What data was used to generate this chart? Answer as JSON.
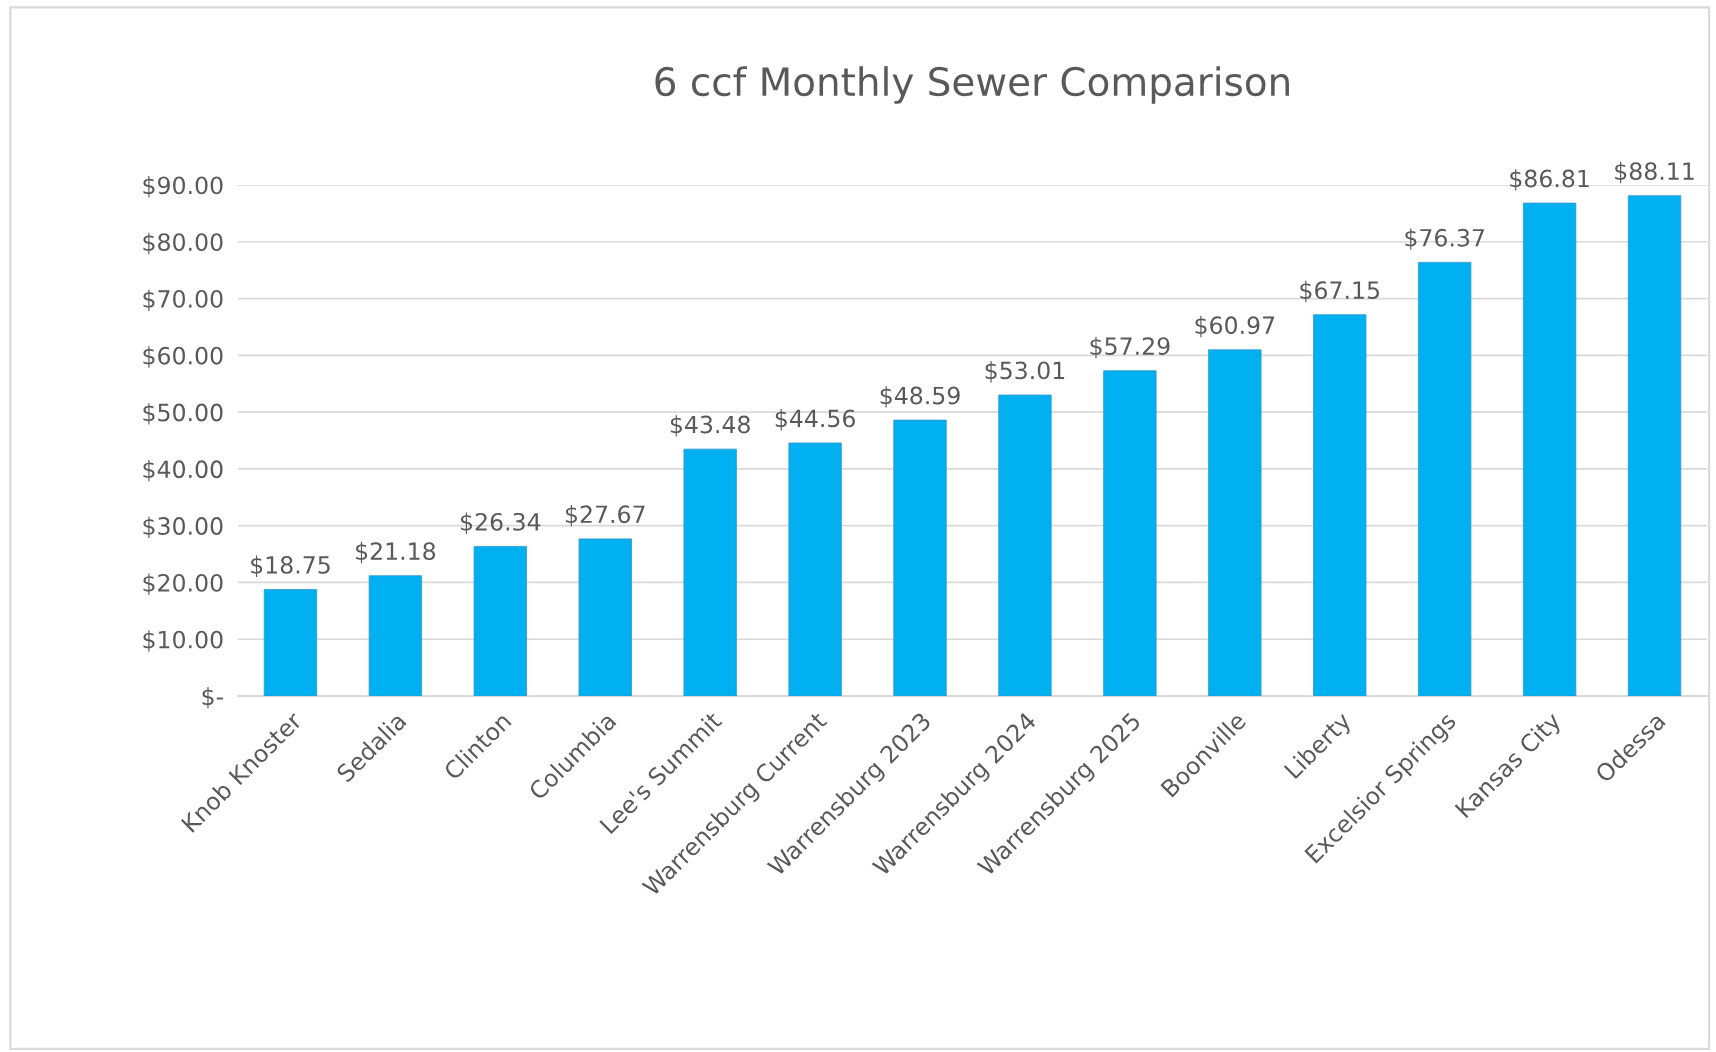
{
  "chart_data": {
    "type": "bar",
    "title": "6 ccf Monthly Sewer Comparison",
    "categories": [
      "Knob Knoster",
      "Sedalia",
      "Clinton",
      "Columbia",
      "Lee's Summit",
      "Warrensburg Current",
      "Warrensburg 2023",
      "Warrensburg 2024",
      "Warrensburg 2025",
      "Boonville",
      "Liberty",
      "Excelsior Springs",
      "Kansas City",
      "Odessa"
    ],
    "values": [
      18.75,
      21.18,
      26.34,
      27.67,
      43.48,
      44.56,
      48.59,
      53.01,
      57.29,
      60.97,
      67.15,
      76.37,
      86.81,
      88.11
    ],
    "value_labels": [
      "$18.75",
      "$21.18",
      "$26.34",
      "$27.67",
      "$43.48",
      "$44.56",
      "$48.59",
      "$53.01",
      "$57.29",
      "$60.97",
      "$67.15",
      "$76.37",
      "$86.81",
      "$88.11"
    ],
    "color": "#00b0f0",
    "ylim": [
      0,
      90
    ],
    "yticks": [
      {
        "value": 0,
        "label": "$-"
      },
      {
        "value": 10,
        "label": "$10.00"
      },
      {
        "value": 20,
        "label": "$20.00"
      },
      {
        "value": 30,
        "label": "$30.00"
      },
      {
        "value": 40,
        "label": "$40.00"
      },
      {
        "value": 50,
        "label": "$50.00"
      },
      {
        "value": 60,
        "label": "$60.00"
      },
      {
        "value": 70,
        "label": "$70.00"
      },
      {
        "value": 80,
        "label": "$80.00"
      },
      {
        "value": 90,
        "label": "$90.00"
      }
    ],
    "grid": "y",
    "legend": false
  }
}
